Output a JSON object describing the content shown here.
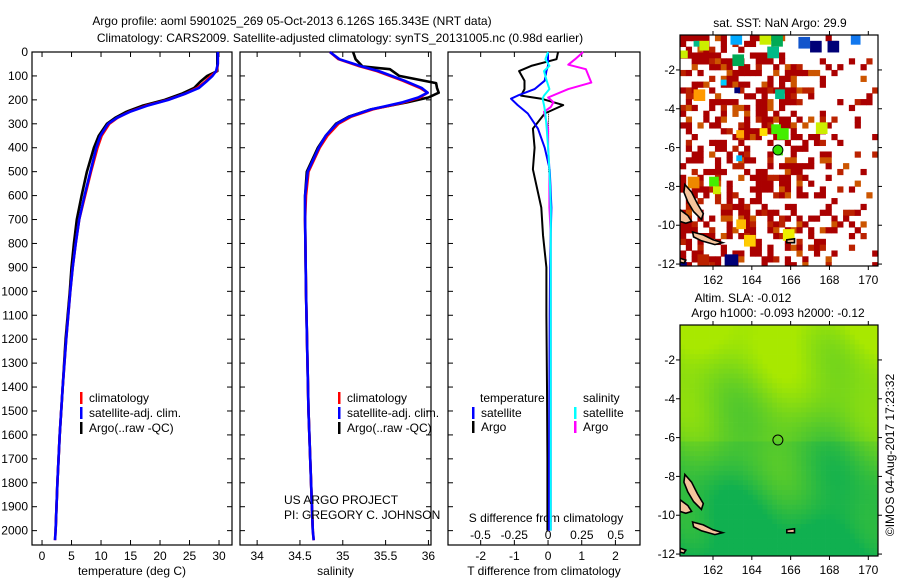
{
  "title": {
    "line1": "Argo profile: aoml 5901025_269 05-Oct-2013 6.126S 165.343E (NRT data)",
    "line2": "Climatology: CARS2009. Satellite-adjusted climatology: synTS_20131005.nc (0.98d earlier)"
  },
  "depth_axis": {
    "ticks": [
      0,
      100,
      200,
      300,
      400,
      500,
      600,
      700,
      800,
      900,
      1000,
      1100,
      1200,
      1300,
      1400,
      1500,
      1600,
      1700,
      1800,
      1900,
      2000
    ],
    "range": [
      0,
      2060
    ]
  },
  "chart_data": [
    {
      "type": "line",
      "id": "temperature",
      "xlabel": "temperature (deg C)",
      "xlim": [
        -1.7,
        32.2
      ],
      "xticks": [
        0,
        5,
        10,
        15,
        20,
        25,
        30
      ],
      "legend": [
        "climatology",
        "satellite-adj. clim.",
        "Argo(..raw -QC)"
      ],
      "series": [
        {
          "name": "climatology",
          "color": "#ff0000",
          "depth": [
            0,
            50,
            80,
            100,
            125,
            150,
            175,
            200,
            225,
            250,
            275,
            300,
            350,
            400,
            500,
            600,
            700,
            800,
            900,
            1000,
            1200,
            1400,
            1600,
            1800,
            2000,
            2040
          ],
          "values": [
            29.8,
            29.8,
            29.6,
            28.6,
            27.6,
            26.3,
            24.2,
            21.3,
            17.6,
            14.8,
            12.8,
            11.4,
            10.1,
            9.4,
            8.3,
            7.3,
            6.3,
            5.7,
            5.2,
            4.8,
            4.1,
            3.5,
            3.0,
            2.6,
            2.3,
            2.2
          ]
        },
        {
          "name": "satellite-adj. clim.",
          "color": "#0000ff",
          "depth": [
            0,
            50,
            80,
            100,
            125,
            150,
            175,
            200,
            225,
            250,
            275,
            300,
            350,
            400,
            500,
            600,
            700,
            800,
            900,
            1000,
            1200,
            1400,
            1600,
            1800,
            2000,
            2040
          ],
          "values": [
            29.8,
            29.8,
            29.5,
            28.9,
            27.8,
            26.6,
            24.2,
            21.4,
            17.8,
            14.9,
            12.7,
            11.2,
            9.9,
            9.2,
            8.2,
            7.2,
            6.3,
            5.7,
            5.2,
            4.8,
            4.1,
            3.5,
            3.0,
            2.6,
            2.3,
            2.2
          ]
        },
        {
          "name": "Argo(..raw -QC)",
          "color": "#000000",
          "depth": [
            0,
            50,
            80,
            100,
            125,
            150,
            175,
            200,
            225,
            250,
            275,
            300,
            350,
            400,
            500,
            600,
            700,
            800,
            900,
            1000,
            1200,
            1400,
            1600,
            1800,
            2000
          ],
          "values": [
            29.7,
            29.7,
            29.7,
            28.0,
            26.8,
            25.8,
            23.6,
            20.8,
            17.0,
            14.3,
            12.4,
            11.0,
            9.6,
            8.8,
            7.6,
            6.7,
            5.9,
            5.4,
            5.0,
            4.7,
            4.0,
            3.5,
            3.0,
            2.6,
            2.3
          ]
        }
      ]
    },
    {
      "type": "line",
      "id": "salinity",
      "xlabel": "salinity",
      "xlim": [
        33.8,
        36.03
      ],
      "xticks": [
        34,
        34.5,
        35,
        35.5,
        36
      ],
      "legend": [
        "climatology",
        "satellite-adj. clim.",
        "Argo(..raw -QC)"
      ],
      "series": [
        {
          "name": "climatology",
          "color": "#ff0000",
          "depth": [
            0,
            30,
            60,
            80,
            100,
            120,
            150,
            170,
            190,
            210,
            240,
            270,
            300,
            350,
            400,
            500,
            600,
            700,
            1000,
            1500,
            2000,
            2040
          ],
          "values": [
            34.85,
            34.95,
            35.2,
            35.4,
            35.55,
            35.7,
            35.9,
            35.99,
            35.9,
            35.72,
            35.35,
            35.1,
            34.95,
            34.82,
            34.73,
            34.6,
            34.57,
            34.56,
            34.57,
            34.6,
            34.65,
            34.66
          ]
        },
        {
          "name": "satellite-adj. clim.",
          "color": "#0000ff",
          "depth": [
            0,
            30,
            60,
            80,
            100,
            120,
            150,
            170,
            190,
            210,
            240,
            270,
            300,
            350,
            400,
            500,
            600,
            700,
            1000,
            1500,
            2000,
            2040
          ],
          "values": [
            34.85,
            34.96,
            35.22,
            35.42,
            35.57,
            35.72,
            35.92,
            35.99,
            35.88,
            35.7,
            35.33,
            35.08,
            34.93,
            34.8,
            34.72,
            34.59,
            34.56,
            34.56,
            34.57,
            34.6,
            34.65,
            34.66
          ]
        },
        {
          "name": "Argo(..raw -QC)",
          "color": "#000000",
          "depth": [
            0,
            30,
            60,
            72,
            100,
            130,
            150,
            170,
            190,
            210,
            240,
            270,
            300,
            350,
            400,
            500,
            600,
            700,
            1000,
            1500,
            2000
          ],
          "values": [
            35.12,
            35.15,
            35.23,
            35.55,
            35.66,
            36.09,
            36.1,
            36.12,
            36.0,
            35.75,
            35.33,
            35.07,
            34.92,
            34.8,
            34.71,
            34.58,
            34.56,
            34.56,
            34.57,
            34.6,
            34.65
          ]
        }
      ]
    },
    {
      "type": "line",
      "id": "difference",
      "xlabel": "T difference from climatology",
      "x2label": "S difference from climatology",
      "xlim": [
        -2.97,
        2.73
      ],
      "xticks": [
        -2,
        -1,
        0,
        1,
        2
      ],
      "x2lim": [
        -0.74,
        0.68
      ],
      "x2ticks": [
        -0.5,
        -0.25,
        0,
        0.25,
        0.5
      ],
      "legend": {
        "temperature_title": "temperature",
        "salinity_title": "salinity",
        "temperature": [
          "satellite",
          "Argo"
        ],
        "salinity": [
          "satellite",
          "Argo"
        ]
      },
      "series": [
        {
          "name": "temperature Argo",
          "axis": "T",
          "color": "#000000",
          "depth": [
            0,
            30,
            58,
            80,
            120,
            155,
            182,
            195,
            222,
            257,
            320,
            400,
            490,
            650,
            765,
            900,
            1100,
            1400,
            1700,
            2000
          ],
          "values": [
            0.3,
            0.25,
            -0.5,
            -0.86,
            -0.7,
            -0.7,
            -0.8,
            -0.2,
            0.45,
            -0.1,
            -0.45,
            -0.4,
            -0.45,
            -0.2,
            -0.15,
            -0.05,
            -0.05,
            -0.03,
            -0.02,
            -0.02
          ]
        },
        {
          "name": "temperature satellite",
          "axis": "T",
          "color": "#0000ff",
          "depth": [
            0,
            30,
            58,
            80,
            120,
            155,
            182,
            195,
            222,
            257,
            320,
            400,
            490,
            650,
            765,
            900,
            1100,
            1400,
            1700,
            2000
          ],
          "values": [
            0,
            0,
            0,
            -0.05,
            -0.1,
            -0.4,
            -0.9,
            -1.1,
            -0.9,
            -0.6,
            -0.3,
            -0.1,
            0.05,
            0.1,
            0.08,
            0.06,
            0.05,
            0.04,
            0.03,
            0.03
          ]
        },
        {
          "name": "salinity Argo",
          "axis": "S",
          "color": "#ff00ff",
          "depth": [
            0,
            30,
            53,
            72,
            128,
            155,
            190,
            210,
            230,
            250,
            320,
            400,
            490,
            650,
            765,
            900,
            1100,
            1400,
            1700,
            2000
          ],
          "values": [
            0.26,
            0.2,
            0.15,
            0.28,
            0.32,
            0.15,
            0.0,
            0.04,
            0.02,
            -0.03,
            0.0,
            0.0,
            0.01,
            0.01,
            0.02,
            0.02,
            0.02,
            0.02,
            0.02,
            0.02
          ]
        },
        {
          "name": "salinity satellite",
          "axis": "S",
          "color": "#00ffff",
          "depth": [
            0,
            30,
            58,
            80,
            120,
            155,
            182,
            195,
            222,
            257,
            320,
            400,
            490,
            650,
            765,
            900,
            1100,
            1400,
            1700,
            2000
          ],
          "values": [
            0,
            -0.02,
            0.01,
            -0.03,
            -0.01,
            0.01,
            -0.03,
            -0.04,
            -0.03,
            -0.02,
            -0.01,
            0,
            0.01,
            0.02,
            0.02,
            0.02,
            0.02,
            0.02,
            0.02,
            0.02
          ]
        }
      ]
    }
  ],
  "credits": {
    "project": "US ARGO PROJECT",
    "pi": "PI: GREGORY C. JOHNSON",
    "imos": "©IMOS 04-Aug-2017 17:23:32"
  },
  "maps": {
    "lon_range": [
      160.3,
      170.5
    ],
    "lat_range": [
      -12.1,
      -0.2
    ],
    "lon_ticks": [
      162,
      164,
      166,
      168,
      170
    ],
    "lat_ticks": [
      -2,
      -4,
      -6,
      -8,
      -10,
      -12
    ],
    "argo_position": {
      "lon": 165.343,
      "lat": -6.126
    },
    "sst": {
      "title": "sat. SST: NaN Argo: 29.9",
      "marker_color": "#33dd00",
      "colored_cells": [
        [
          166.4,
          -0.3,
          0.6,
          "#1155cc"
        ],
        [
          167.0,
          -0.5,
          0.6,
          "#000077"
        ],
        [
          167.9,
          -0.5,
          0.6,
          "#000077"
        ],
        [
          169.1,
          -0.2,
          0.5,
          "#1177ee"
        ],
        [
          162.9,
          -0.1,
          0.6,
          "#00aaff"
        ],
        [
          164.4,
          -0.1,
          0.6,
          "#ccee00"
        ],
        [
          165.0,
          -0.2,
          0.6,
          "#00aa55"
        ],
        [
          163.0,
          -1.2,
          0.6,
          "#00aa55"
        ],
        [
          164.8,
          -0.8,
          0.6,
          "#00bb88"
        ],
        [
          161.0,
          -0.5,
          0.3,
          "#00bb88"
        ],
        [
          160.3,
          -1.0,
          0.4,
          "#ccee00"
        ],
        [
          161.3,
          -0.5,
          0.5,
          "#ccee00"
        ],
        [
          165.2,
          -3.0,
          0.5,
          "#00bb88"
        ],
        [
          165.0,
          -4.8,
          0.5,
          "#44ee00"
        ],
        [
          165.3,
          -5.0,
          0.6,
          "#44ee00"
        ],
        [
          167.3,
          -4.7,
          0.6,
          "#ccee00"
        ],
        [
          165.6,
          -10.2,
          0.6,
          "#eeee00"
        ],
        [
          162.6,
          -11.5,
          0.7,
          "#000077"
        ],
        [
          161.2,
          -11.5,
          0.6,
          "#bb2200"
        ],
        [
          160.3,
          -11.9,
          0.35,
          "#000077"
        ],
        [
          161.8,
          -7.5,
          0.5,
          "#44ee00"
        ],
        [
          163.2,
          -9.7,
          0.5,
          "#ffbb00"
        ],
        [
          163.6,
          -10.5,
          0.6,
          "#ffcc00"
        ],
        [
          164.4,
          -5.0,
          0.4,
          "#ffdd00"
        ],
        [
          163.1,
          -2.9,
          0.3,
          "#000077"
        ],
        [
          162.4,
          -2.5,
          0.3,
          "#00ccff"
        ],
        [
          160.7,
          -7.5,
          0.6,
          "#ee8800"
        ],
        [
          161.0,
          -3.0,
          0.6,
          "#ff9900"
        ],
        [
          163.2,
          -5.1,
          0.4,
          "#ffaa00"
        ],
        [
          162.0,
          -8.0,
          0.4,
          "#ccee00"
        ],
        [
          163.2,
          -6.4,
          0.3,
          "#00bbff"
        ],
        [
          165.3,
          -6.1,
          0.3,
          "#33dd00"
        ]
      ]
    },
    "sla": {
      "title1": "Altim. SLA: -0.012",
      "title2": "Argo h1000: -0.093 h2000: -0.12"
    },
    "land_color": "#f5c49c",
    "islands": [
      [
        [
          160.55,
          -7.9
        ],
        [
          160.9,
          -8.3
        ],
        [
          161.2,
          -8.9
        ],
        [
          161.5,
          -9.4
        ],
        [
          161.4,
          -9.7
        ],
        [
          161.0,
          -9.3
        ],
        [
          160.7,
          -8.8
        ],
        [
          160.5,
          -8.3
        ]
      ],
      [
        [
          160.3,
          -9.2
        ],
        [
          160.7,
          -9.5
        ],
        [
          160.9,
          -9.8
        ],
        [
          160.6,
          -9.9
        ],
        [
          160.3,
          -9.8
        ]
      ],
      [
        [
          160.95,
          -10.35
        ],
        [
          161.5,
          -10.5
        ],
        [
          162.0,
          -10.75
        ],
        [
          162.5,
          -10.9
        ],
        [
          162.1,
          -11.0
        ],
        [
          161.4,
          -10.8
        ],
        [
          161.0,
          -10.6
        ]
      ],
      [
        [
          165.8,
          -10.75
        ],
        [
          166.2,
          -10.7
        ],
        [
          166.2,
          -10.9
        ],
        [
          165.8,
          -10.9
        ]
      ],
      [
        [
          160.3,
          -11.7
        ],
        [
          160.6,
          -11.8
        ],
        [
          160.5,
          -11.95
        ],
        [
          160.3,
          -11.9
        ]
      ]
    ]
  }
}
